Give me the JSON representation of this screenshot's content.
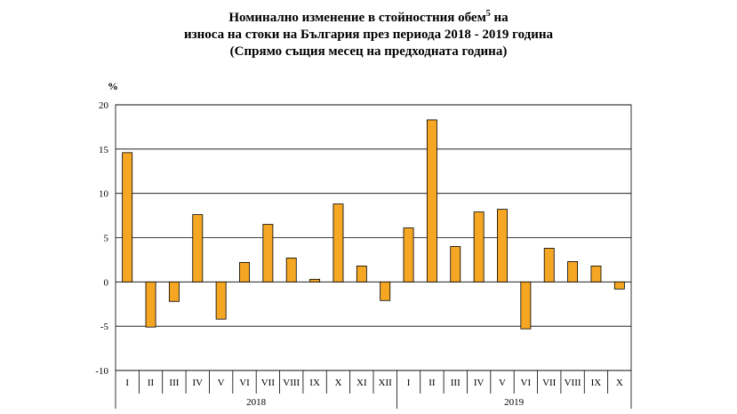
{
  "title": {
    "line1_pre": "Номинално изменение в стойностния обем",
    "superscript": "5",
    "line1_post": " на",
    "line2": "износа на стоки на България през периода 2018 - 2019 година",
    "line3": "(Спрямо същия месец на предходната година)"
  },
  "chart_data": {
    "type": "bar",
    "ylabel": "%",
    "ylim": [
      -10,
      20
    ],
    "yticks": [
      "20",
      "15",
      "10",
      "5",
      "0",
      "-5",
      "-10"
    ],
    "ytick_values": [
      20,
      15,
      10,
      5,
      0,
      -5,
      -10
    ],
    "grid": true,
    "categories": [
      "I",
      "II",
      "III",
      "IV",
      "V",
      "VI",
      "VII",
      "VIII",
      "IX",
      "X",
      "XI",
      "XII",
      "I",
      "II",
      "III",
      "IV",
      "V",
      "VI",
      "VII",
      "VIII",
      "IX",
      "X"
    ],
    "values": [
      14.6,
      -5.1,
      -2.2,
      7.6,
      -4.2,
      2.2,
      6.5,
      2.7,
      0.3,
      8.8,
      1.8,
      -2.1,
      6.1,
      18.3,
      4.0,
      7.9,
      8.2,
      -5.3,
      3.8,
      2.3,
      1.8,
      -0.8
    ],
    "groups": [
      {
        "label": "2018",
        "count": 12
      },
      {
        "label": "2019",
        "count": 10
      }
    ],
    "bar_color": "#F5A623",
    "bar_stroke": "#000000"
  }
}
